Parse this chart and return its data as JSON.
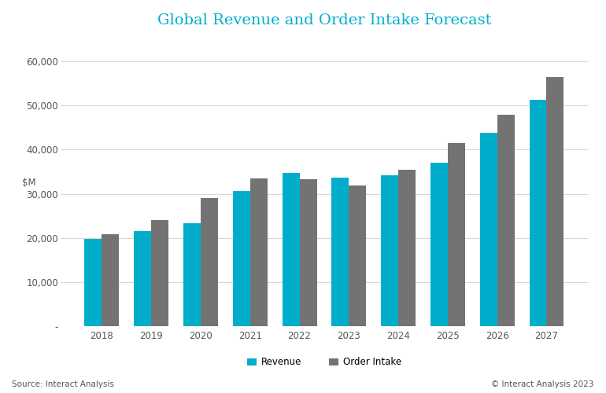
{
  "title": "Global Revenue and Order Intake Forecast",
  "title_color": "#00AECC",
  "years": [
    2018,
    2019,
    2020,
    2021,
    2022,
    2023,
    2024,
    2025,
    2026,
    2027
  ],
  "revenue": [
    19700,
    21500,
    23300,
    30700,
    34800,
    33600,
    34200,
    37000,
    43800,
    51200
  ],
  "order_intake": [
    20800,
    24000,
    29100,
    33400,
    33300,
    31800,
    35400,
    41500,
    47900,
    56400
  ],
  "revenue_color": "#00AECC",
  "order_intake_color": "#737373",
  "ylim": [
    0,
    65000
  ],
  "yticks": [
    0,
    10000,
    20000,
    30000,
    40000,
    50000,
    60000
  ],
  "ytick_labels": [
    "-",
    "10,000",
    "20,000",
    "30,000",
    "40,000",
    "50,000",
    "60,000"
  ],
  "background_color": "#ffffff",
  "grid_color": "#d0d0d0",
  "legend_labels": [
    "Revenue",
    "Order Intake"
  ],
  "source_text": "Source: Interact Analysis",
  "copyright_text": "© Interact Analysis 2023",
  "bar_width": 0.35,
  "title_fontsize": 14,
  "axis_label_fontsize": 8.5,
  "tick_fontsize": 8.5,
  "legend_fontsize": 8.5,
  "footer_fontsize": 7.5
}
